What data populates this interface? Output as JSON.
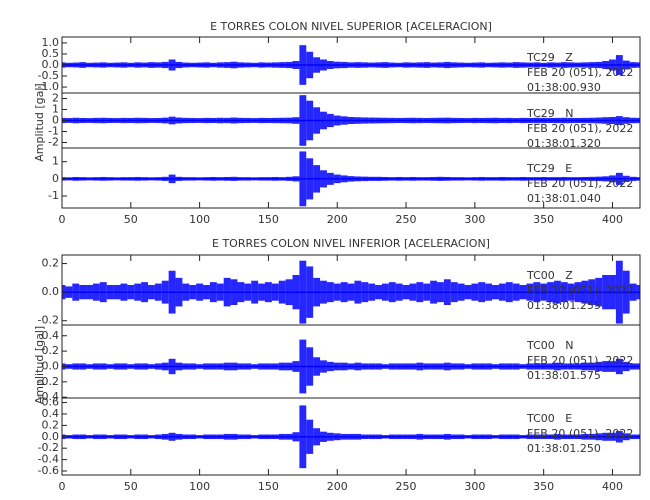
{
  "chart_data": [
    {
      "type": "waveform",
      "title": "E TORRES COLON NIVEL SUPERIOR [ACELERACION]",
      "ylabel": "Amplitud [gal]",
      "color": "#0000ff",
      "xlim": [
        0,
        420
      ],
      "xticks": [
        0,
        50,
        100,
        150,
        200,
        250,
        300,
        350,
        400
      ],
      "x": [
        0,
        5,
        10,
        15,
        20,
        25,
        30,
        35,
        40,
        45,
        50,
        55,
        60,
        65,
        70,
        75,
        80,
        85,
        90,
        95,
        100,
        105,
        110,
        115,
        120,
        125,
        130,
        135,
        140,
        145,
        150,
        155,
        160,
        165,
        170,
        175,
        180,
        185,
        190,
        195,
        200,
        205,
        210,
        215,
        220,
        225,
        230,
        235,
        240,
        245,
        250,
        255,
        260,
        265,
        270,
        275,
        280,
        285,
        290,
        295,
        300,
        305,
        310,
        315,
        320,
        325,
        330,
        335,
        340,
        345,
        350,
        355,
        360,
        365,
        370,
        375,
        380,
        385,
        390,
        395,
        400,
        405,
        410,
        415,
        420
      ],
      "series": [
        {
          "name": "TC29   Z",
          "date": "FEB 20 (051), 2022",
          "time": "01:38:00.930",
          "ylim": [
            -1.27,
            1.27
          ],
          "yticks": [
            {
              "value": 1,
              "label": "1.0"
            },
            0.5,
            {
              "value": 0,
              "label": "0.0"
            },
            -0.5,
            {
              "value": -1,
              "label": "-1.0"
            }
          ],
          "values": [
            0.12,
            0.1,
            0.11,
            0.13,
            0.1,
            0.11,
            0.12,
            0.1,
            0.11,
            0.12,
            0.1,
            0.12,
            0.11,
            0.13,
            0.12,
            0.14,
            0.25,
            0.14,
            0.11,
            0.1,
            0.11,
            0.12,
            0.1,
            0.12,
            0.13,
            0.15,
            0.12,
            0.11,
            0.1,
            0.12,
            0.11,
            0.12,
            0.13,
            0.14,
            0.18,
            0.9,
            0.6,
            0.35,
            0.25,
            0.18,
            0.15,
            0.14,
            0.12,
            0.13,
            0.12,
            0.11,
            0.12,
            0.13,
            0.11,
            0.1,
            0.12,
            0.11,
            0.12,
            0.13,
            0.11,
            0.12,
            0.14,
            0.12,
            0.11,
            0.1,
            0.11,
            0.12,
            0.1,
            0.11,
            0.12,
            0.11,
            0.13,
            0.12,
            0.11,
            0.12,
            0.1,
            0.12,
            0.11,
            0.13,
            0.12,
            0.11,
            0.12,
            0.13,
            0.14,
            0.18,
            0.25,
            0.45,
            0.2,
            0.13,
            0.12
          ]
        },
        {
          "name": "TC29   N",
          "date": "FEB 20 (051), 2022",
          "time": "01:38:01.320",
          "ylim": [
            -2.5,
            2.5
          ],
          "yticks": [
            2,
            1,
            0,
            -1,
            -2
          ],
          "values": [
            0.24,
            0.22,
            0.25,
            0.23,
            0.22,
            0.24,
            0.25,
            0.23,
            0.22,
            0.24,
            0.23,
            0.25,
            0.24,
            0.22,
            0.23,
            0.26,
            0.35,
            0.27,
            0.24,
            0.23,
            0.22,
            0.24,
            0.23,
            0.25,
            0.24,
            0.27,
            0.24,
            0.23,
            0.22,
            0.24,
            0.23,
            0.24,
            0.25,
            0.26,
            0.3,
            2.3,
            1.8,
            1.2,
            0.8,
            0.6,
            0.45,
            0.38,
            0.32,
            0.3,
            0.28,
            0.27,
            0.26,
            0.25,
            0.24,
            0.23,
            0.24,
            0.25,
            0.24,
            0.23,
            0.24,
            0.25,
            0.26,
            0.24,
            0.23,
            0.22,
            0.24,
            0.23,
            0.24,
            0.25,
            0.23,
            0.24,
            0.22,
            0.24,
            0.23,
            0.25,
            0.24,
            0.23,
            0.24,
            0.25,
            0.24,
            0.23,
            0.24,
            0.25,
            0.27,
            0.3,
            0.32,
            0.4,
            0.3,
            0.25,
            0.24
          ]
        },
        {
          "name": "TC29   E",
          "date": "FEB 20 (051), 2022",
          "time": "01:38:01.040",
          "ylim": [
            -1.7,
            1.8
          ],
          "yticks": [
            1,
            0,
            -1
          ],
          "values": [
            0.1,
            0.09,
            0.11,
            0.1,
            0.09,
            0.1,
            0.11,
            0.1,
            0.09,
            0.1,
            0.1,
            0.11,
            0.1,
            0.09,
            0.1,
            0.12,
            0.25,
            0.12,
            0.1,
            0.1,
            0.09,
            0.1,
            0.11,
            0.1,
            0.11,
            0.12,
            0.1,
            0.1,
            0.09,
            0.1,
            0.1,
            0.11,
            0.1,
            0.12,
            0.15,
            1.6,
            1.2,
            0.8,
            0.5,
            0.35,
            0.25,
            0.2,
            0.16,
            0.14,
            0.13,
            0.12,
            0.12,
            0.11,
            0.1,
            0.11,
            0.1,
            0.11,
            0.1,
            0.1,
            0.11,
            0.12,
            0.11,
            0.1,
            0.1,
            0.09,
            0.1,
            0.11,
            0.1,
            0.1,
            0.11,
            0.1,
            0.1,
            0.11,
            0.1,
            0.1,
            0.11,
            0.1,
            0.1,
            0.11,
            0.1,
            0.1,
            0.11,
            0.12,
            0.13,
            0.15,
            0.2,
            0.35,
            0.18,
            0.12,
            0.1
          ]
        }
      ]
    },
    {
      "type": "waveform",
      "title": "E TORRES COLON NIVEL INFERIOR [ACELERACION]",
      "ylabel": "Amplitud [gal]",
      "color": "#0000ff",
      "xlim": [
        0,
        420
      ],
      "xticks": [
        0,
        50,
        100,
        150,
        200,
        250,
        300,
        350,
        400
      ],
      "x": [
        0,
        5,
        10,
        15,
        20,
        25,
        30,
        35,
        40,
        45,
        50,
        55,
        60,
        65,
        70,
        75,
        80,
        85,
        90,
        95,
        100,
        105,
        110,
        115,
        120,
        125,
        130,
        135,
        140,
        145,
        150,
        155,
        160,
        165,
        170,
        175,
        180,
        185,
        190,
        195,
        200,
        205,
        210,
        215,
        220,
        225,
        230,
        235,
        240,
        245,
        250,
        255,
        260,
        265,
        270,
        275,
        280,
        285,
        290,
        295,
        300,
        305,
        310,
        315,
        320,
        325,
        330,
        335,
        340,
        345,
        350,
        355,
        360,
        365,
        370,
        375,
        380,
        385,
        390,
        395,
        400,
        405,
        410,
        415,
        420
      ],
      "series": [
        {
          "name": "TC00   Z",
          "date": "FEB 20 (051), 2022",
          "time": "01:38:01.255",
          "ylim": [
            -0.23,
            0.26
          ],
          "yticks": [
            0.2,
            {
              "value": 0,
              "label": "0.0"
            },
            -0.2
          ],
          "values": [
            0.05,
            0.04,
            0.06,
            0.05,
            0.05,
            0.06,
            0.07,
            0.05,
            0.05,
            0.06,
            0.05,
            0.06,
            0.07,
            0.05,
            0.06,
            0.08,
            0.15,
            0.1,
            0.06,
            0.05,
            0.06,
            0.05,
            0.07,
            0.06,
            0.1,
            0.09,
            0.07,
            0.06,
            0.08,
            0.06,
            0.07,
            0.06,
            0.08,
            0.09,
            0.12,
            0.22,
            0.18,
            0.1,
            0.08,
            0.07,
            0.06,
            0.07,
            0.06,
            0.08,
            0.07,
            0.06,
            0.05,
            0.06,
            0.07,
            0.06,
            0.05,
            0.06,
            0.07,
            0.06,
            0.08,
            0.07,
            0.09,
            0.07,
            0.06,
            0.05,
            0.06,
            0.07,
            0.06,
            0.05,
            0.06,
            0.07,
            0.06,
            0.05,
            0.06,
            0.07,
            0.06,
            0.07,
            0.08,
            0.07,
            0.06,
            0.07,
            0.08,
            0.09,
            0.1,
            0.12,
            0.12,
            0.22,
            0.15,
            0.06,
            0.05
          ]
        },
        {
          "name": "TC00   N",
          "date": "FEB 20 (051), 2022",
          "time": "01:38:01.575",
          "ylim": [
            -0.41,
            0.54
          ],
          "yticks": [
            0.4,
            0.2,
            {
              "value": 0,
              "label": "0.0"
            },
            -0.2,
            -0.4
          ],
          "values": [
            0.04,
            0.03,
            0.04,
            0.04,
            0.03,
            0.04,
            0.04,
            0.03,
            0.04,
            0.04,
            0.03,
            0.04,
            0.04,
            0.03,
            0.04,
            0.05,
            0.1,
            0.05,
            0.04,
            0.04,
            0.03,
            0.04,
            0.04,
            0.04,
            0.05,
            0.05,
            0.04,
            0.04,
            0.03,
            0.04,
            0.04,
            0.04,
            0.05,
            0.05,
            0.07,
            0.35,
            0.25,
            0.12,
            0.08,
            0.06,
            0.05,
            0.05,
            0.04,
            0.05,
            0.04,
            0.04,
            0.04,
            0.03,
            0.04,
            0.04,
            0.04,
            0.04,
            0.05,
            0.04,
            0.04,
            0.04,
            0.05,
            0.04,
            0.04,
            0.03,
            0.04,
            0.04,
            0.04,
            0.03,
            0.04,
            0.04,
            0.04,
            0.03,
            0.04,
            0.04,
            0.04,
            0.04,
            0.05,
            0.04,
            0.04,
            0.04,
            0.05,
            0.05,
            0.06,
            0.07,
            0.07,
            0.1,
            0.06,
            0.04,
            0.04
          ]
        },
        {
          "name": "TC00   E",
          "date": "FEB 20 (051), 2022",
          "time": "01:38:01.250",
          "ylim": [
            -0.67,
            0.68
          ],
          "yticks": [
            0.6,
            0.4,
            0.2,
            {
              "value": 0,
              "label": "0.0"
            },
            -0.2,
            -0.4,
            -0.6
          ],
          "values": [
            0.04,
            0.03,
            0.04,
            0.04,
            0.03,
            0.04,
            0.04,
            0.03,
            0.04,
            0.04,
            0.03,
            0.04,
            0.04,
            0.03,
            0.04,
            0.05,
            0.07,
            0.05,
            0.04,
            0.04,
            0.03,
            0.04,
            0.04,
            0.04,
            0.05,
            0.05,
            0.04,
            0.04,
            0.03,
            0.04,
            0.04,
            0.04,
            0.05,
            0.05,
            0.08,
            0.55,
            0.3,
            0.15,
            0.09,
            0.07,
            0.06,
            0.05,
            0.05,
            0.05,
            0.04,
            0.04,
            0.04,
            0.03,
            0.04,
            0.04,
            0.04,
            0.04,
            0.05,
            0.04,
            0.04,
            0.04,
            0.05,
            0.04,
            0.04,
            0.03,
            0.04,
            0.04,
            0.04,
            0.03,
            0.04,
            0.04,
            0.04,
            0.03,
            0.04,
            0.04,
            0.04,
            0.04,
            0.05,
            0.04,
            0.04,
            0.04,
            0.05,
            0.05,
            0.06,
            0.07,
            0.07,
            0.1,
            0.06,
            0.04,
            0.04
          ]
        }
      ]
    }
  ]
}
